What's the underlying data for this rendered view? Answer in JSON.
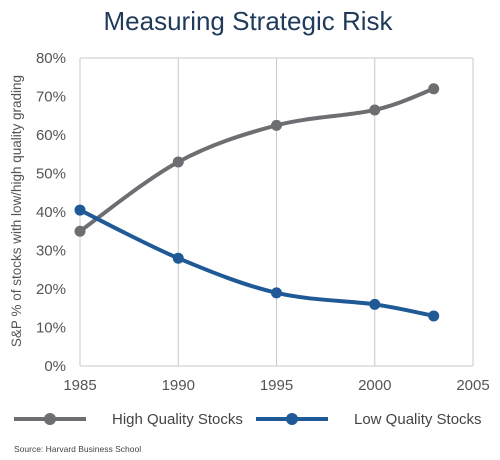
{
  "chart_data": {
    "type": "line",
    "title": "Measuring Strategic Risk",
    "ylabel": "S&P % of stocks with low/high quality grading",
    "xlabel": "",
    "x_ticks": [
      "1985",
      "1990",
      "1995",
      "2000",
      "2005"
    ],
    "y_ticks": [
      "0%",
      "10%",
      "20%",
      "30%",
      "40%",
      "50%",
      "60%",
      "70%",
      "80%"
    ],
    "xlim": [
      1985,
      2005
    ],
    "ylim": [
      0,
      80
    ],
    "grid": "vertical",
    "legend_position": "bottom",
    "series": [
      {
        "name": "High Quality Stocks",
        "color": "#6d6e71",
        "x": [
          1985,
          1990,
          1995,
          2000,
          2003
        ],
        "y": [
          35,
          53,
          62.5,
          66.5,
          72
        ]
      },
      {
        "name": "Low Quality Stocks",
        "color": "#1f5a96",
        "x": [
          1985,
          1990,
          1995,
          2000,
          2003
        ],
        "y": [
          40.5,
          28,
          19,
          16,
          13
        ]
      }
    ],
    "source": "Source: Harvard Business School"
  }
}
